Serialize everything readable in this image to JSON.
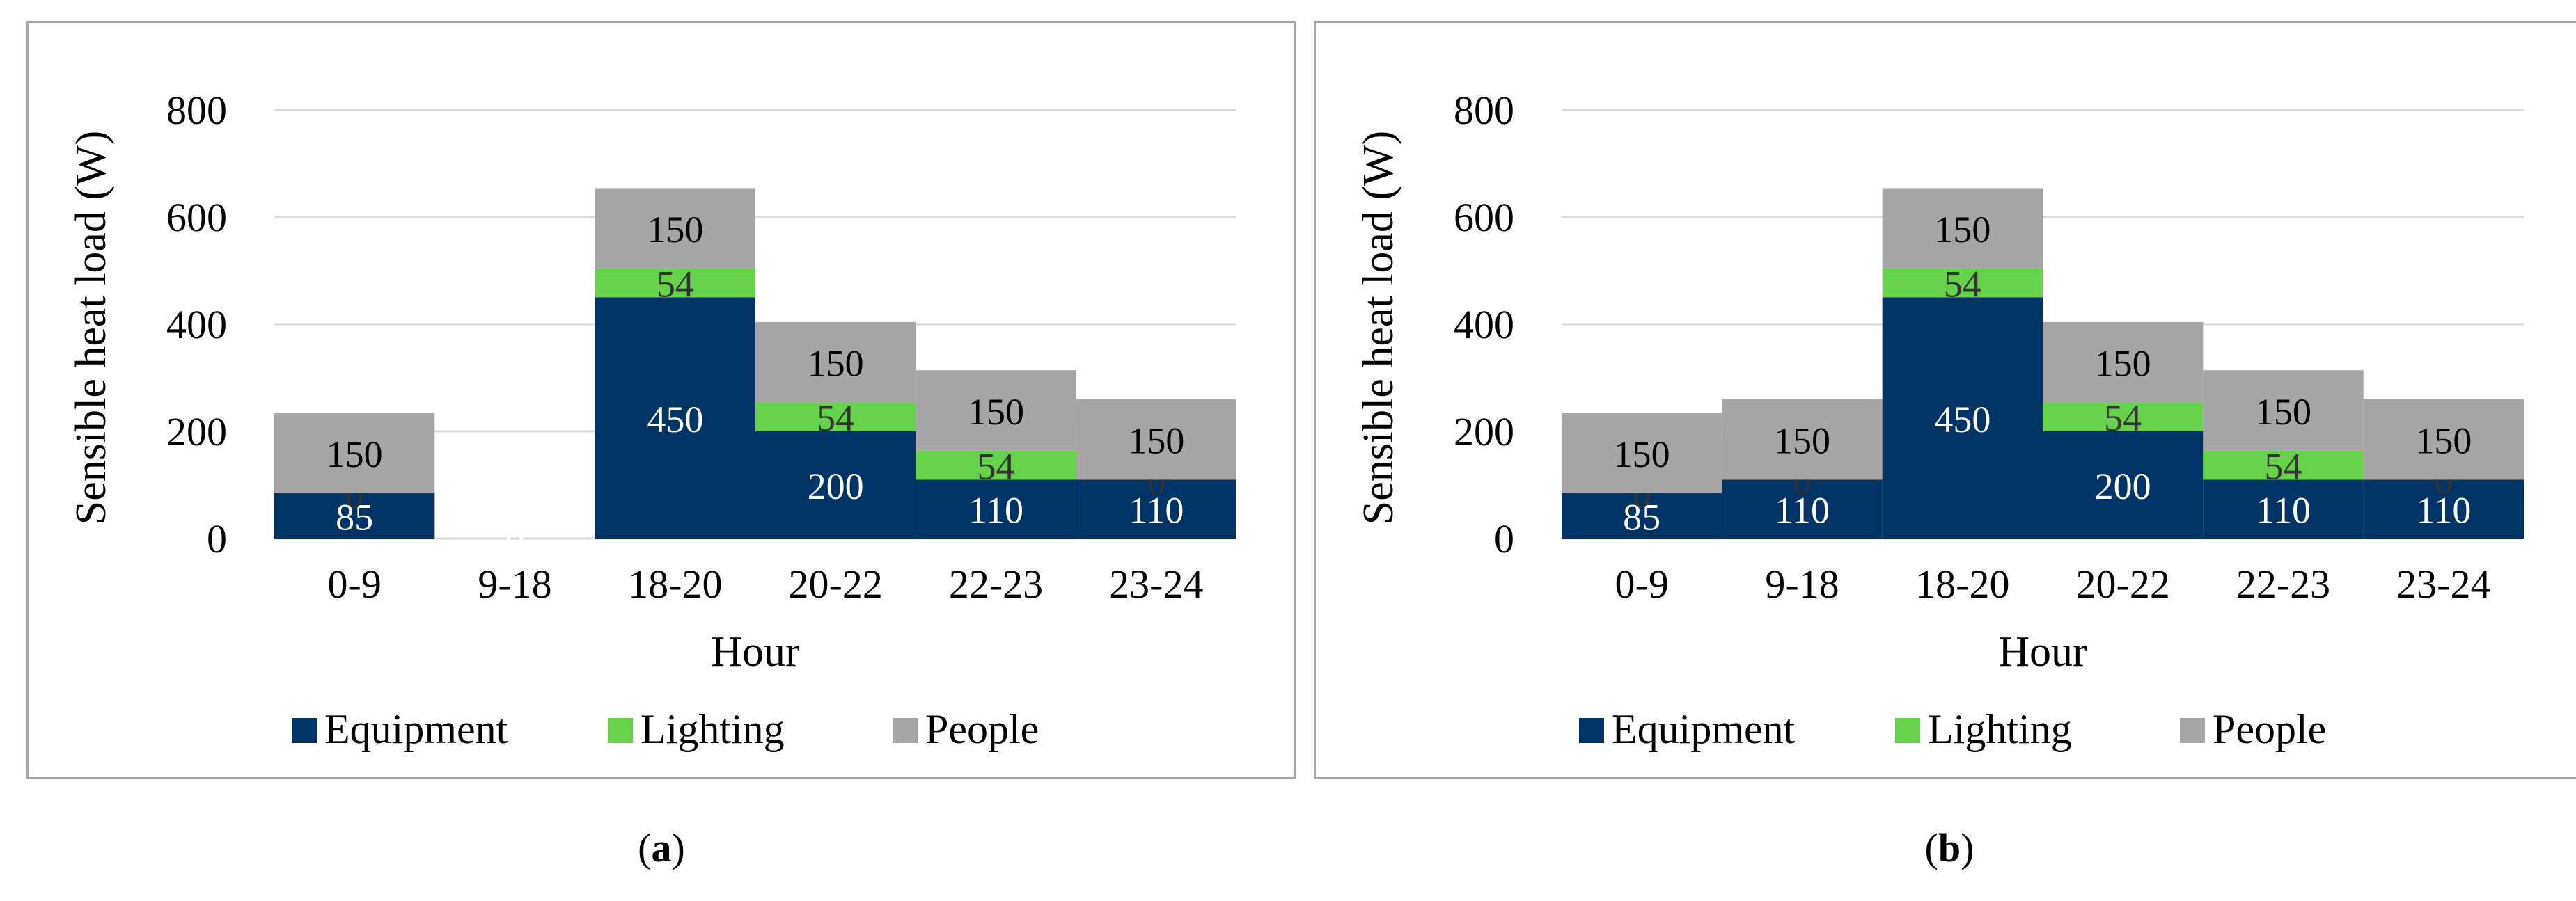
{
  "colors": {
    "equipment": "#003366",
    "lighting": "#66d14a",
    "people": "#a6a6a6",
    "grid": "#d9d9d9",
    "panel_border": "#a6a6a6"
  },
  "chart_data": [
    {
      "type": "bar",
      "stacked": true,
      "title": "",
      "xlabel": "Hour",
      "ylabel": "Sensible heat load (W)",
      "ylim": [
        0,
        800
      ],
      "yticks": [
        "0",
        "200",
        "400",
        "600",
        "800"
      ],
      "categories": [
        "0-9",
        "9-18",
        "18-20",
        "20-22",
        "22-23",
        "23-24"
      ],
      "series": [
        {
          "name": "Equipment",
          "values": [
            85,
            0,
            450,
            200,
            110,
            110
          ],
          "labels": [
            "85",
            "0",
            "450",
            "200",
            "110",
            "110"
          ]
        },
        {
          "name": "Lighting",
          "values": [
            0,
            null,
            54,
            54,
            54,
            0
          ],
          "labels": [
            "0",
            "",
            "54",
            "54",
            "54",
            "0"
          ]
        },
        {
          "name": "People",
          "values": [
            150,
            null,
            150,
            150,
            150,
            150
          ],
          "labels": [
            "150",
            "",
            "150",
            "150",
            "150",
            "150"
          ]
        }
      ],
      "legend": [
        "Equipment",
        "Lighting",
        "People"
      ],
      "legend_position": "bottom",
      "caption_open": "(",
      "caption_letter": "a",
      "caption_close": ")"
    },
    {
      "type": "bar",
      "stacked": true,
      "title": "",
      "xlabel": "Hour",
      "ylabel": "Sensible heat load (W)",
      "ylim": [
        0,
        800
      ],
      "yticks": [
        "0",
        "200",
        "400",
        "600",
        "800"
      ],
      "categories": [
        "0-9",
        "9-18",
        "18-20",
        "20-22",
        "22-23",
        "23-24"
      ],
      "series": [
        {
          "name": "Equipment",
          "values": [
            85,
            110,
            450,
            200,
            110,
            110
          ],
          "labels": [
            "85",
            "110",
            "450",
            "200",
            "110",
            "110"
          ]
        },
        {
          "name": "Lighting",
          "values": [
            0,
            0,
            54,
            54,
            54,
            0
          ],
          "labels": [
            "0",
            "0",
            "54",
            "54",
            "54",
            "0"
          ]
        },
        {
          "name": "People",
          "values": [
            150,
            150,
            150,
            150,
            150,
            150
          ],
          "labels": [
            "150",
            "150",
            "150",
            "150",
            "150",
            "150"
          ]
        }
      ],
      "legend": [
        "Equipment",
        "Lighting",
        "People"
      ],
      "legend_position": "bottom",
      "caption_open": "(",
      "caption_letter": "b",
      "caption_close": ")"
    }
  ]
}
